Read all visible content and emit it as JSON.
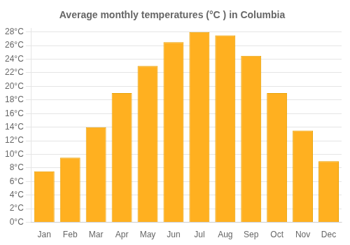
{
  "chart_data": {
    "type": "bar",
    "title": "Average monthly temperatures (°C ) in Columbia",
    "categories": [
      "Jan",
      "Feb",
      "Mar",
      "Apr",
      "May",
      "Jun",
      "Jul",
      "Aug",
      "Sep",
      "Oct",
      "Nov",
      "Dec"
    ],
    "values": [
      7.5,
      9.5,
      14.0,
      19.0,
      23.0,
      26.5,
      28.0,
      27.5,
      24.5,
      19.0,
      13.5,
      9.0
    ],
    "color": "#FFB020",
    "ylim": [
      0,
      28.5
    ],
    "yticks": [
      {
        "value": 0,
        "label": "0°C"
      },
      {
        "value": 2,
        "label": "2°C"
      },
      {
        "value": 4,
        "label": "4°C"
      },
      {
        "value": 6,
        "label": "6°C"
      },
      {
        "value": 8,
        "label": "8°C"
      },
      {
        "value": 10,
        "label": "10°C"
      },
      {
        "value": 12,
        "label": "12°C"
      },
      {
        "value": 14,
        "label": "14°C"
      },
      {
        "value": 16,
        "label": "16°C"
      },
      {
        "value": 18,
        "label": "18°C"
      },
      {
        "value": 20,
        "label": "20°C"
      },
      {
        "value": 22,
        "label": "22°C"
      },
      {
        "value": 24,
        "label": "24°C"
      },
      {
        "value": 26,
        "label": "26°C"
      },
      {
        "value": 28,
        "label": "28°C"
      }
    ],
    "grid": true
  }
}
